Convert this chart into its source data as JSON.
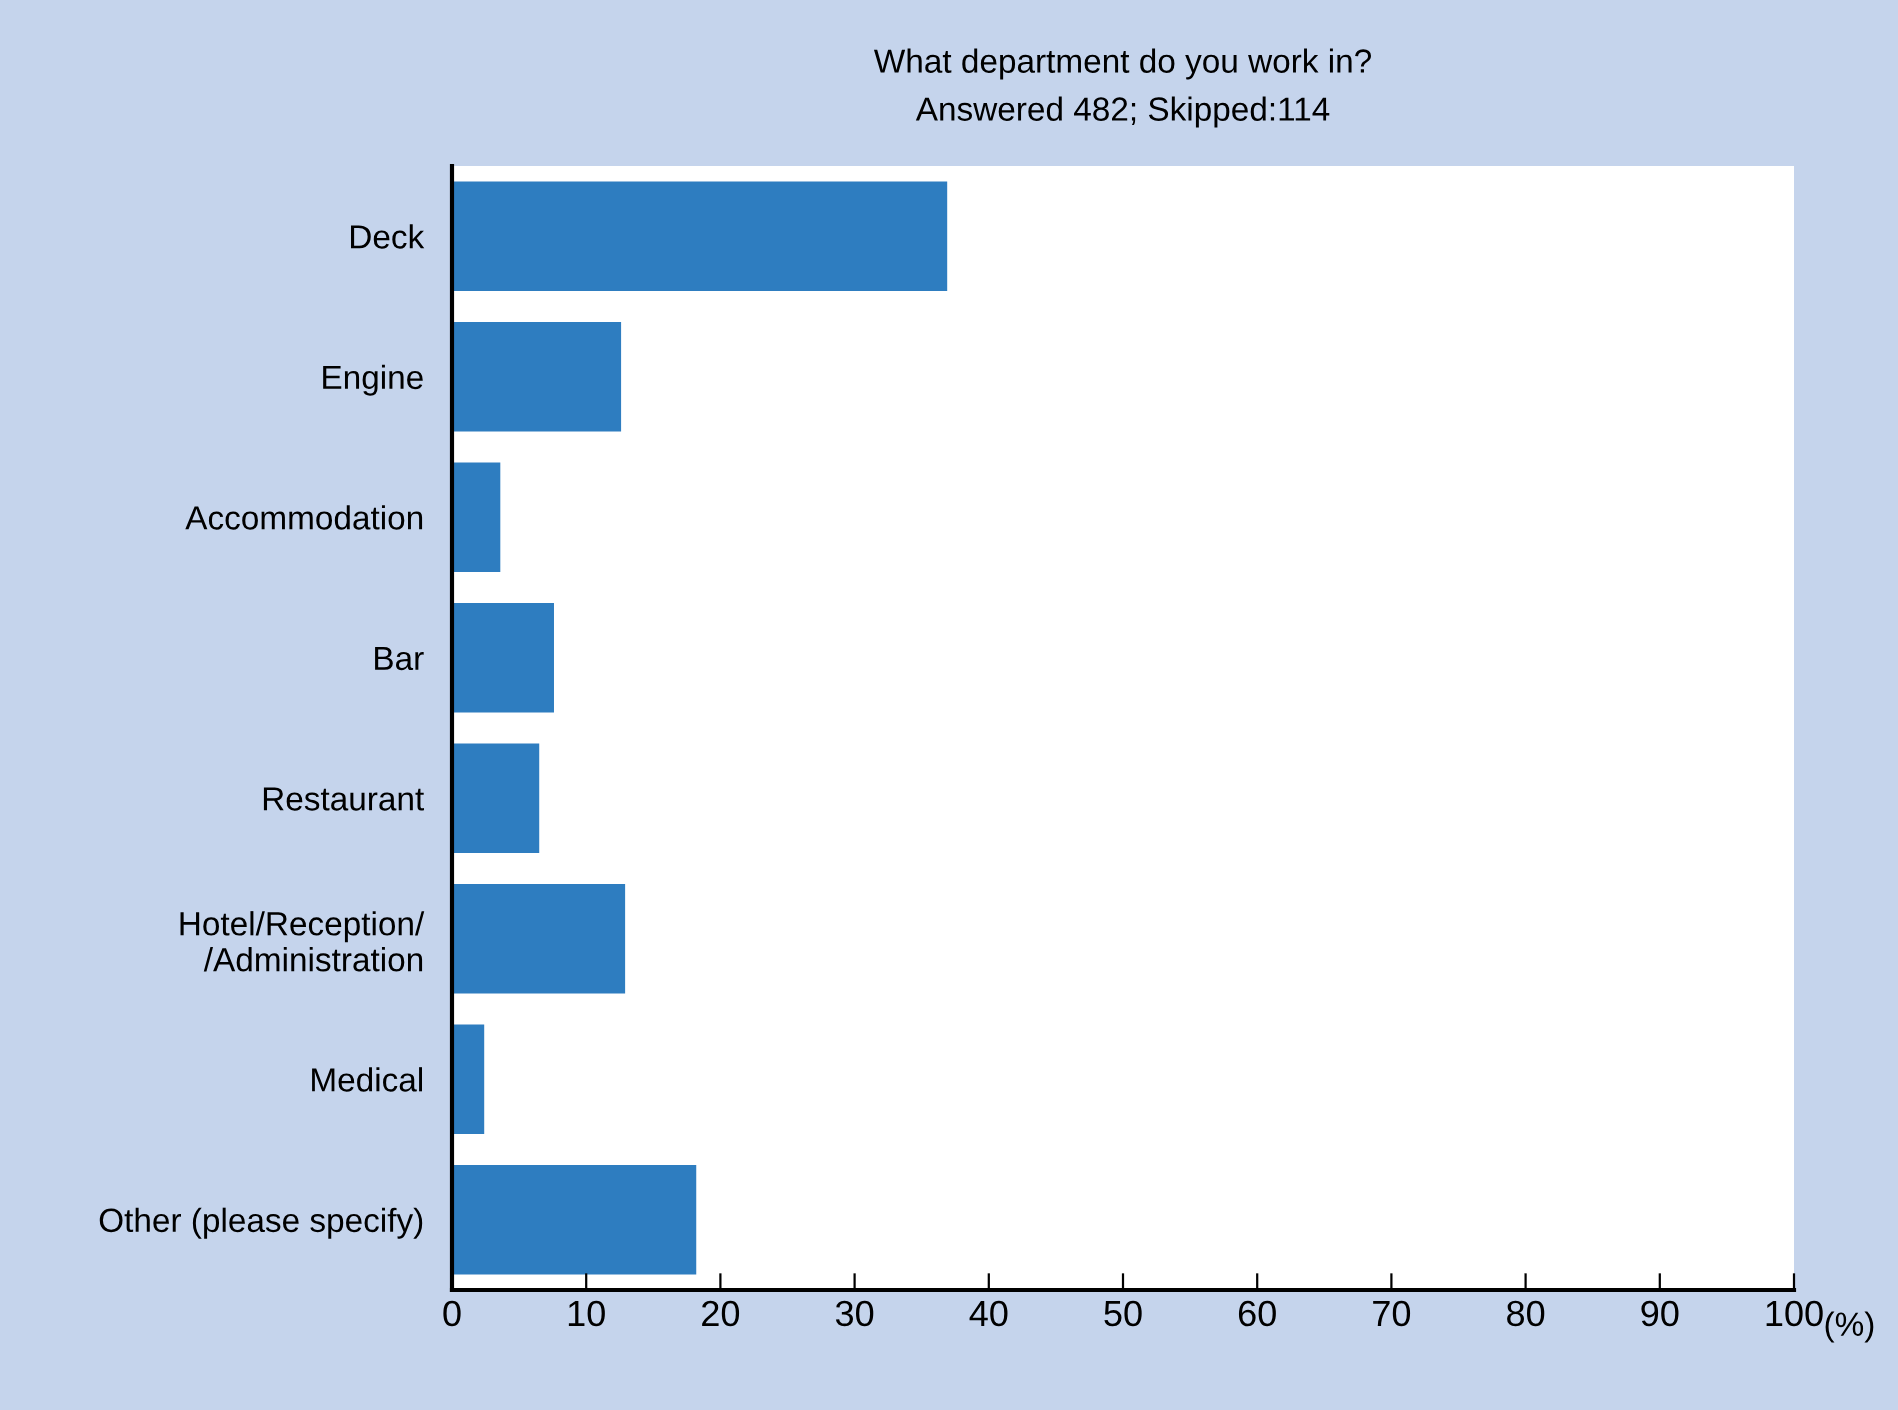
{
  "chart_data": {
    "type": "bar",
    "orientation": "horizontal",
    "title": "What department do you work in?",
    "subtitle": "Answered 482; Skipped:114",
    "xlabel": "(%)",
    "categories": [
      "Deck",
      "Engine",
      "Accommodation",
      "Bar",
      "Restaurant",
      "Hotel/Reception/\n/Administration",
      "Medical",
      "Other (please specify)"
    ],
    "values": [
      36.9,
      12.6,
      3.6,
      7.6,
      6.5,
      12.9,
      2.4,
      18.2
    ],
    "color": "#2e7dc0",
    "xlim": [
      0,
      100
    ],
    "xticks": [
      0,
      10,
      20,
      30,
      40,
      50,
      60,
      70,
      80,
      90,
      100
    ],
    "grid": false,
    "legend": false
  }
}
